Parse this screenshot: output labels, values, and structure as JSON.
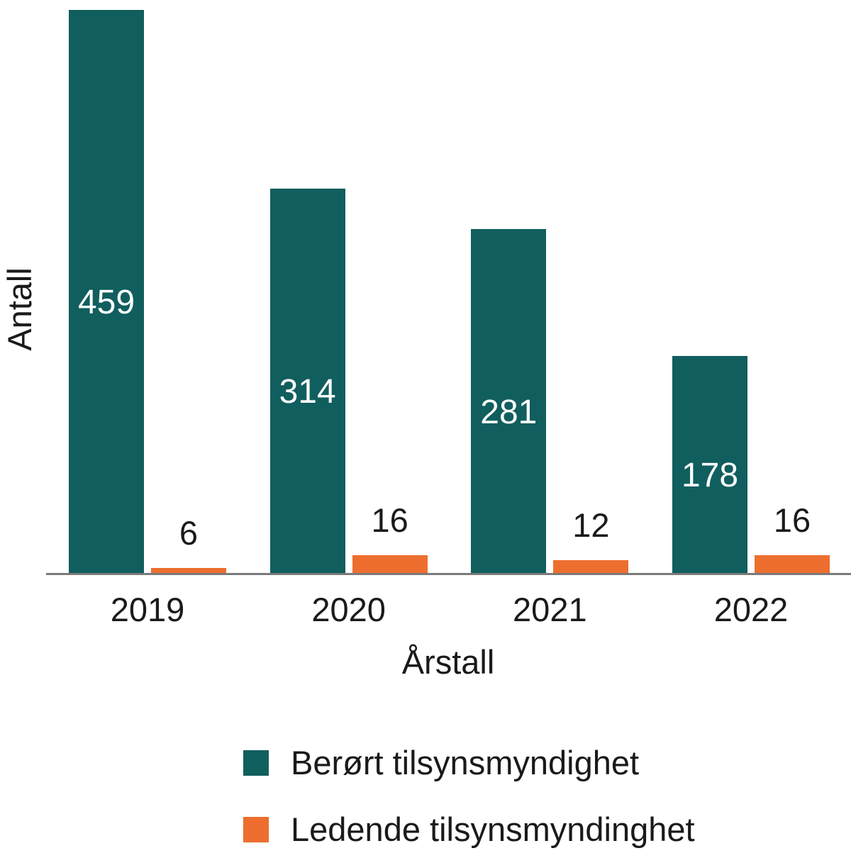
{
  "chart_data": {
    "type": "bar",
    "title": "",
    "categories": [
      "2019",
      "2020",
      "2021",
      "2022"
    ],
    "series": [
      {
        "name": "Berørt tilsynsmyndighet",
        "color": "#115e5e",
        "values": [
          459,
          314,
          281,
          178
        ],
        "value_label_style": "inside"
      },
      {
        "name": "Ledende tilsynsmyndinghet",
        "color": "#ed6e2f",
        "values": [
          6,
          16,
          12,
          16
        ],
        "value_label_style": "above"
      }
    ],
    "xlabel": "Årstall",
    "ylabel": "Antall",
    "ylim": [
      0,
      460
    ],
    "grid": false,
    "y_ticks_visible": false,
    "legend_position": "bottom-left",
    "axis_line_color": "#7a7a7a",
    "text_color": "#1a1a1a",
    "inside_label_color": "#ffffff",
    "background_color": "#ffffff"
  }
}
